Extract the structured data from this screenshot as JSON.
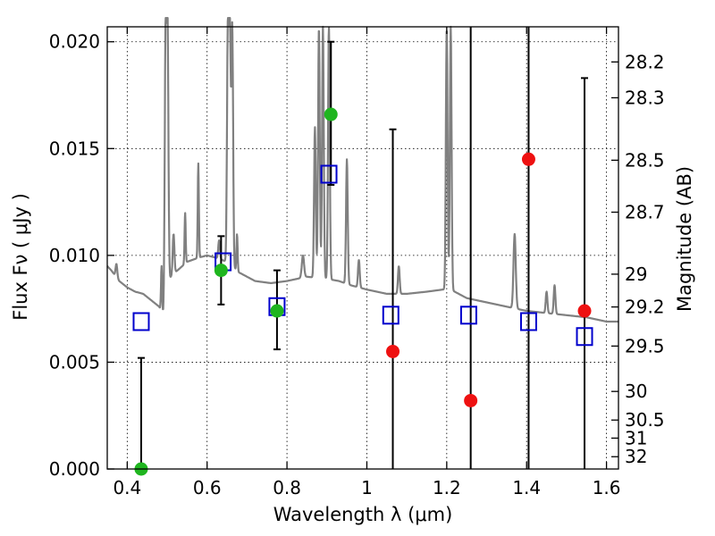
{
  "chart_data": {
    "type": "scatter",
    "title": "",
    "xlabel": "Wavelength  λ (μm)",
    "ylabel": "Flux  Fν  ( μJy )",
    "y2label": "Magnitude (AB)",
    "xlim": [
      0.35,
      1.63
    ],
    "ylim": [
      0.0,
      0.0207
    ],
    "grid": true,
    "legend": "none",
    "x_ticks": [
      {
        "value": 0.4,
        "label": "0.4"
      },
      {
        "value": 0.6,
        "label": "0.6"
      },
      {
        "value": 0.8,
        "label": "0.8"
      },
      {
        "value": 1.0,
        "label": "1"
      },
      {
        "value": 1.2,
        "label": "1.2"
      },
      {
        "value": 1.4,
        "label": "1.4"
      },
      {
        "value": 1.6,
        "label": "1.6"
      }
    ],
    "y_ticks": [
      {
        "value": 0.0,
        "label": "0.000"
      },
      {
        "value": 0.005,
        "label": "0.005"
      },
      {
        "value": 0.01,
        "label": "0.010"
      },
      {
        "value": 0.015,
        "label": "0.015"
      },
      {
        "value": 0.02,
        "label": "0.020"
      }
    ],
    "mag_ticks": [
      {
        "label": "28.2"
      },
      {
        "label": "28.3"
      },
      {
        "label": "28.5"
      },
      {
        "label": "28.7"
      },
      {
        "label": "29"
      },
      {
        "label": "29.2"
      },
      {
        "label": "29.5"
      },
      {
        "label": "30"
      },
      {
        "label": "30.5"
      },
      {
        "label": "31"
      },
      {
        "label": "32"
      }
    ],
    "colors": {
      "spectrum": "#808080",
      "model": "#0000cc",
      "detected": "#1fb51f",
      "limit": "#ee1111",
      "errorbar": "#000000"
    },
    "spectrum": {
      "continuum": [
        [
          0.35,
          0.0095
        ],
        [
          0.36,
          0.0093
        ],
        [
          0.38,
          0.0088
        ],
        [
          0.4,
          0.0085
        ],
        [
          0.42,
          0.0083
        ],
        [
          0.44,
          0.0082
        ],
        [
          0.46,
          0.0079
        ],
        [
          0.48,
          0.0076
        ],
        [
          0.49,
          0.0072
        ],
        [
          0.495,
          0.0071
        ],
        [
          0.5,
          0.0088
        ],
        [
          0.52,
          0.0092
        ],
        [
          0.55,
          0.0097
        ],
        [
          0.58,
          0.0099
        ],
        [
          0.6,
          0.01
        ],
        [
          0.62,
          0.0099
        ],
        [
          0.65,
          0.0097
        ],
        [
          0.68,
          0.0092
        ],
        [
          0.72,
          0.0088
        ],
        [
          0.76,
          0.0087
        ],
        [
          0.8,
          0.0088
        ],
        [
          0.85,
          0.009
        ],
        [
          0.9,
          0.0089
        ],
        [
          0.93,
          0.0088
        ],
        [
          0.96,
          0.0086
        ],
        [
          1.0,
          0.0084
        ],
        [
          1.05,
          0.0082
        ],
        [
          1.1,
          0.0082
        ],
        [
          1.15,
          0.0083
        ],
        [
          1.19,
          0.0084
        ],
        [
          1.21,
          0.0084
        ],
        [
          1.25,
          0.008
        ],
        [
          1.3,
          0.0078
        ],
        [
          1.35,
          0.0076
        ],
        [
          1.4,
          0.0074
        ],
        [
          1.45,
          0.0073
        ],
        [
          1.5,
          0.0072
        ],
        [
          1.55,
          0.0071
        ],
        [
          1.6,
          0.0069
        ],
        [
          1.63,
          0.0069
        ]
      ],
      "lines": [
        {
          "x": 0.373,
          "peak": 0.0096,
          "w": 0.003
        },
        {
          "x": 0.486,
          "peak": 0.0095,
          "w": 0.002
        },
        {
          "x": 0.496,
          "peak": 0.0207,
          "w": 0.003
        },
        {
          "x": 0.501,
          "peak": 0.0207,
          "w": 0.003
        },
        {
          "x": 0.516,
          "peak": 0.011,
          "w": 0.003
        },
        {
          "x": 0.545,
          "peak": 0.012,
          "w": 0.002
        },
        {
          "x": 0.578,
          "peak": 0.0143,
          "w": 0.002
        },
        {
          "x": 0.63,
          "peak": 0.0107,
          "w": 0.003
        },
        {
          "x": 0.652,
          "peak": 0.0207,
          "w": 0.003
        },
        {
          "x": 0.657,
          "peak": 0.0207,
          "w": 0.003
        },
        {
          "x": 0.663,
          "peak": 0.0207,
          "w": 0.003
        },
        {
          "x": 0.675,
          "peak": 0.011,
          "w": 0.002
        },
        {
          "x": 0.84,
          "peak": 0.01,
          "w": 0.004
        },
        {
          "x": 0.87,
          "peak": 0.016,
          "w": 0.003
        },
        {
          "x": 0.88,
          "peak": 0.0207,
          "w": 0.003
        },
        {
          "x": 0.89,
          "peak": 0.0207,
          "w": 0.003
        },
        {
          "x": 0.905,
          "peak": 0.0207,
          "w": 0.003
        },
        {
          "x": 0.95,
          "peak": 0.0145,
          "w": 0.003
        },
        {
          "x": 0.98,
          "peak": 0.0098,
          "w": 0.003
        },
        {
          "x": 1.08,
          "peak": 0.0095,
          "w": 0.003
        },
        {
          "x": 1.2,
          "peak": 0.0207,
          "w": 0.003
        },
        {
          "x": 1.21,
          "peak": 0.0207,
          "w": 0.003
        },
        {
          "x": 1.37,
          "peak": 0.011,
          "w": 0.004
        },
        {
          "x": 1.45,
          "peak": 0.0083,
          "w": 0.003
        },
        {
          "x": 1.47,
          "peak": 0.0086,
          "w": 0.003
        }
      ]
    },
    "model_points": [
      {
        "x": 0.435,
        "y": 0.0069
      },
      {
        "x": 0.64,
        "y": 0.0097
      },
      {
        "x": 0.775,
        "y": 0.0076
      },
      {
        "x": 0.905,
        "y": 0.0138
      },
      {
        "x": 1.06,
        "y": 0.0072
      },
      {
        "x": 1.255,
        "y": 0.0072
      },
      {
        "x": 1.405,
        "y": 0.0069
      },
      {
        "x": 1.545,
        "y": 0.0062
      }
    ],
    "observed_points": [
      {
        "x": 0.435,
        "y": 0.0,
        "err_lo": 0.0,
        "err_hi": 0.0052,
        "status": "detected"
      },
      {
        "x": 0.635,
        "y": 0.0093,
        "err_lo": 0.0077,
        "err_hi": 0.0109,
        "status": "detected"
      },
      {
        "x": 0.775,
        "y": 0.0074,
        "err_lo": 0.0056,
        "err_hi": 0.0093,
        "status": "detected"
      },
      {
        "x": 0.91,
        "y": 0.0166,
        "err_lo": 0.0133,
        "err_hi": 0.02,
        "status": "detected"
      },
      {
        "x": 1.065,
        "y": 0.0055,
        "err_lo": 0.0,
        "err_hi": 0.0159,
        "status": "limit"
      },
      {
        "x": 1.26,
        "y": 0.0032,
        "err_lo": 0.0,
        "err_hi": 0.0207,
        "status": "limit"
      },
      {
        "x": 1.405,
        "y": 0.0145,
        "err_lo": 0.0,
        "err_hi": 0.0207,
        "status": "limit"
      },
      {
        "x": 1.545,
        "y": 0.0074,
        "err_lo": 0.0,
        "err_hi": 0.0183,
        "status": "limit"
      }
    ]
  }
}
